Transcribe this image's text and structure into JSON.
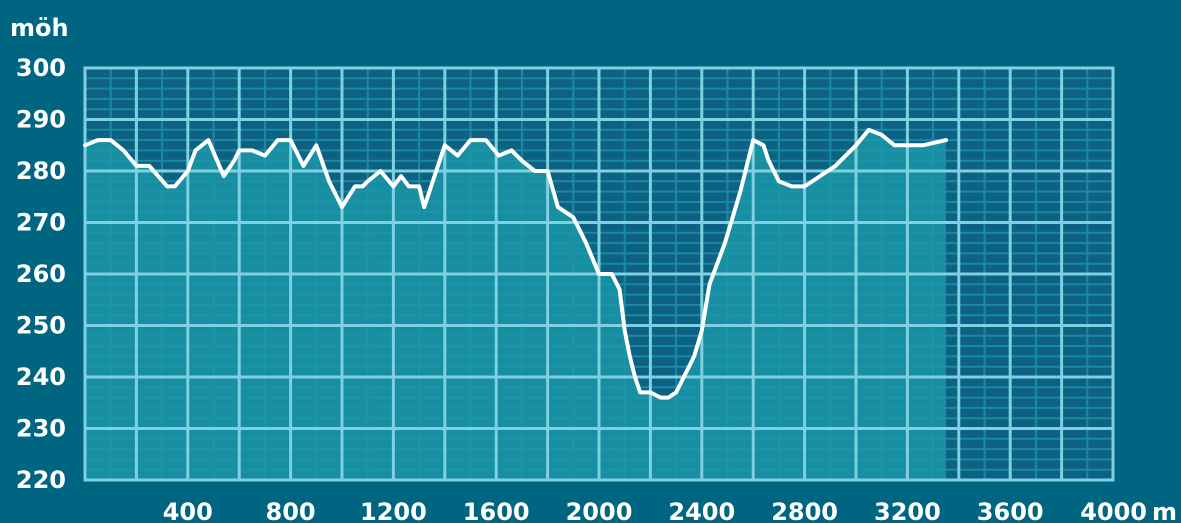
{
  "chart_data": {
    "type": "area",
    "title": "",
    "ylabel": "möh",
    "xlabel": "m",
    "xlim": [
      0,
      4000
    ],
    "ylim": [
      220,
      300
    ],
    "x_ticks": [
      400,
      800,
      1200,
      1600,
      2000,
      2400,
      2800,
      3200,
      3600,
      4000
    ],
    "x_tick_labels": [
      "400",
      "800",
      "1200",
      "1600",
      "2000",
      "2400",
      "2800",
      "3200",
      "3600",
      "4000"
    ],
    "y_ticks": [
      300,
      290,
      280,
      270,
      260,
      250,
      240,
      230,
      220
    ],
    "y_tick_labels": [
      "300",
      "290",
      "280",
      "270",
      "260",
      "250",
      "240",
      "230",
      "220"
    ],
    "grid": true,
    "colors": {
      "background": "#006580",
      "plot_background": "#0d6183",
      "area_fill": "#1b97a8",
      "line": "#ffffff",
      "major_grid": "#7fd0e0",
      "minor_grid": "#1a8aa2"
    },
    "series": [
      {
        "x": [
          0,
          50,
          100,
          150,
          200,
          250,
          320,
          350,
          400,
          430,
          480,
          540,
          580,
          600,
          650,
          700,
          750,
          800,
          850,
          900,
          950,
          1000,
          1050,
          1080,
          1100,
          1150,
          1200,
          1230,
          1260,
          1300,
          1320,
          1340,
          1360,
          1400,
          1450,
          1500,
          1560,
          1610,
          1660,
          1700,
          1750,
          1800,
          1840,
          1870,
          1900,
          1950,
          2000,
          2050,
          2080,
          2100,
          2120,
          2140,
          2160,
          2200,
          2240,
          2270,
          2300,
          2330,
          2370,
          2400,
          2430,
          2460,
          2490,
          2520,
          2550,
          2600,
          2640,
          2660,
          2700,
          2750,
          2800,
          2860,
          2920,
          2960,
          3000,
          3050,
          3100,
          3150,
          3200,
          3260,
          3350
        ],
        "y": [
          285,
          286,
          286,
          284,
          281,
          281,
          277,
          277,
          280,
          284,
          286,
          279,
          282,
          284,
          284,
          283,
          286,
          286,
          281,
          285,
          278,
          273,
          277,
          277,
          278,
          280,
          277,
          279,
          277,
          277,
          273,
          276,
          279,
          285,
          283,
          286,
          286,
          283,
          284,
          282,
          280,
          280,
          273,
          272,
          271,
          266,
          260,
          260,
          257,
          249,
          244,
          240,
          237,
          237,
          236,
          236,
          237,
          240,
          244,
          249,
          258,
          262,
          266,
          271,
          276,
          286,
          285,
          282,
          278,
          277,
          277,
          279,
          281,
          283,
          285,
          288,
          287,
          285,
          285,
          285,
          286
        ]
      }
    ]
  }
}
